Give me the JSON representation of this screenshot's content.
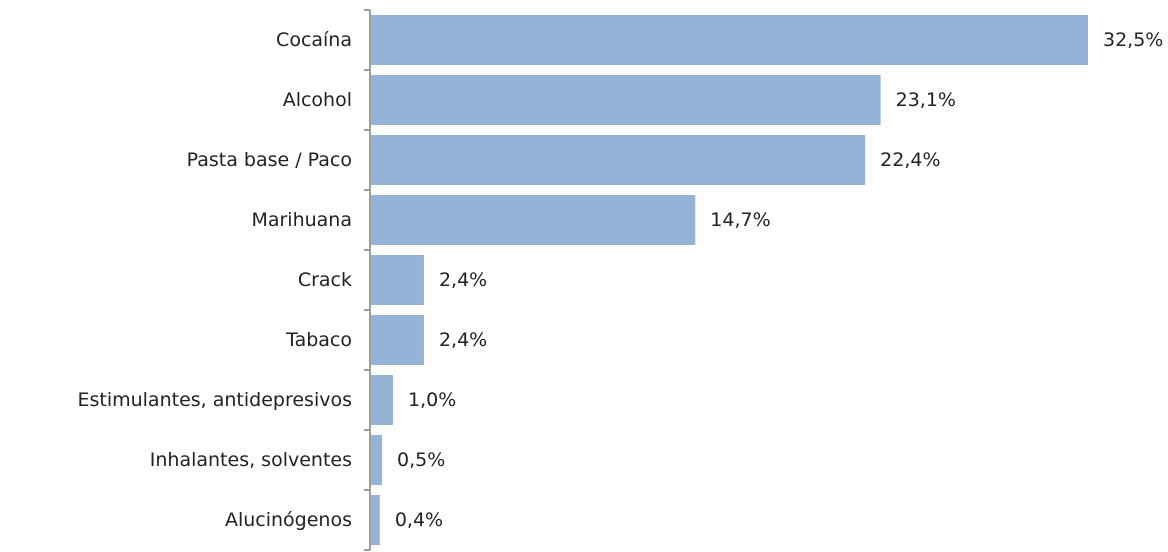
{
  "chart_data": {
    "type": "bar",
    "orientation": "horizontal",
    "categories": [
      "Cocaína",
      "Alcohol",
      "Pasta base / Paco",
      "Marihuana",
      "Crack",
      "Tabaco",
      "Estimulantes, antidepresivos",
      "Inhalantes, solventes",
      "Alucinógenos"
    ],
    "values": [
      32.5,
      23.1,
      22.4,
      14.7,
      2.4,
      2.4,
      1.0,
      0.5,
      0.4
    ],
    "value_labels": [
      "32,5%",
      "23,1%",
      "22,4%",
      "14,7%",
      "2,4%",
      "2,4%",
      "1,0%",
      "0,5%",
      "0,4%"
    ],
    "title": "",
    "xlabel": "",
    "ylabel": "",
    "xlim": [
      0,
      32.5
    ],
    "grid": false,
    "legend": "none",
    "colors": {
      "bar": "#95b3d7",
      "axis": "#7f7f7f",
      "text": "#222222"
    }
  }
}
